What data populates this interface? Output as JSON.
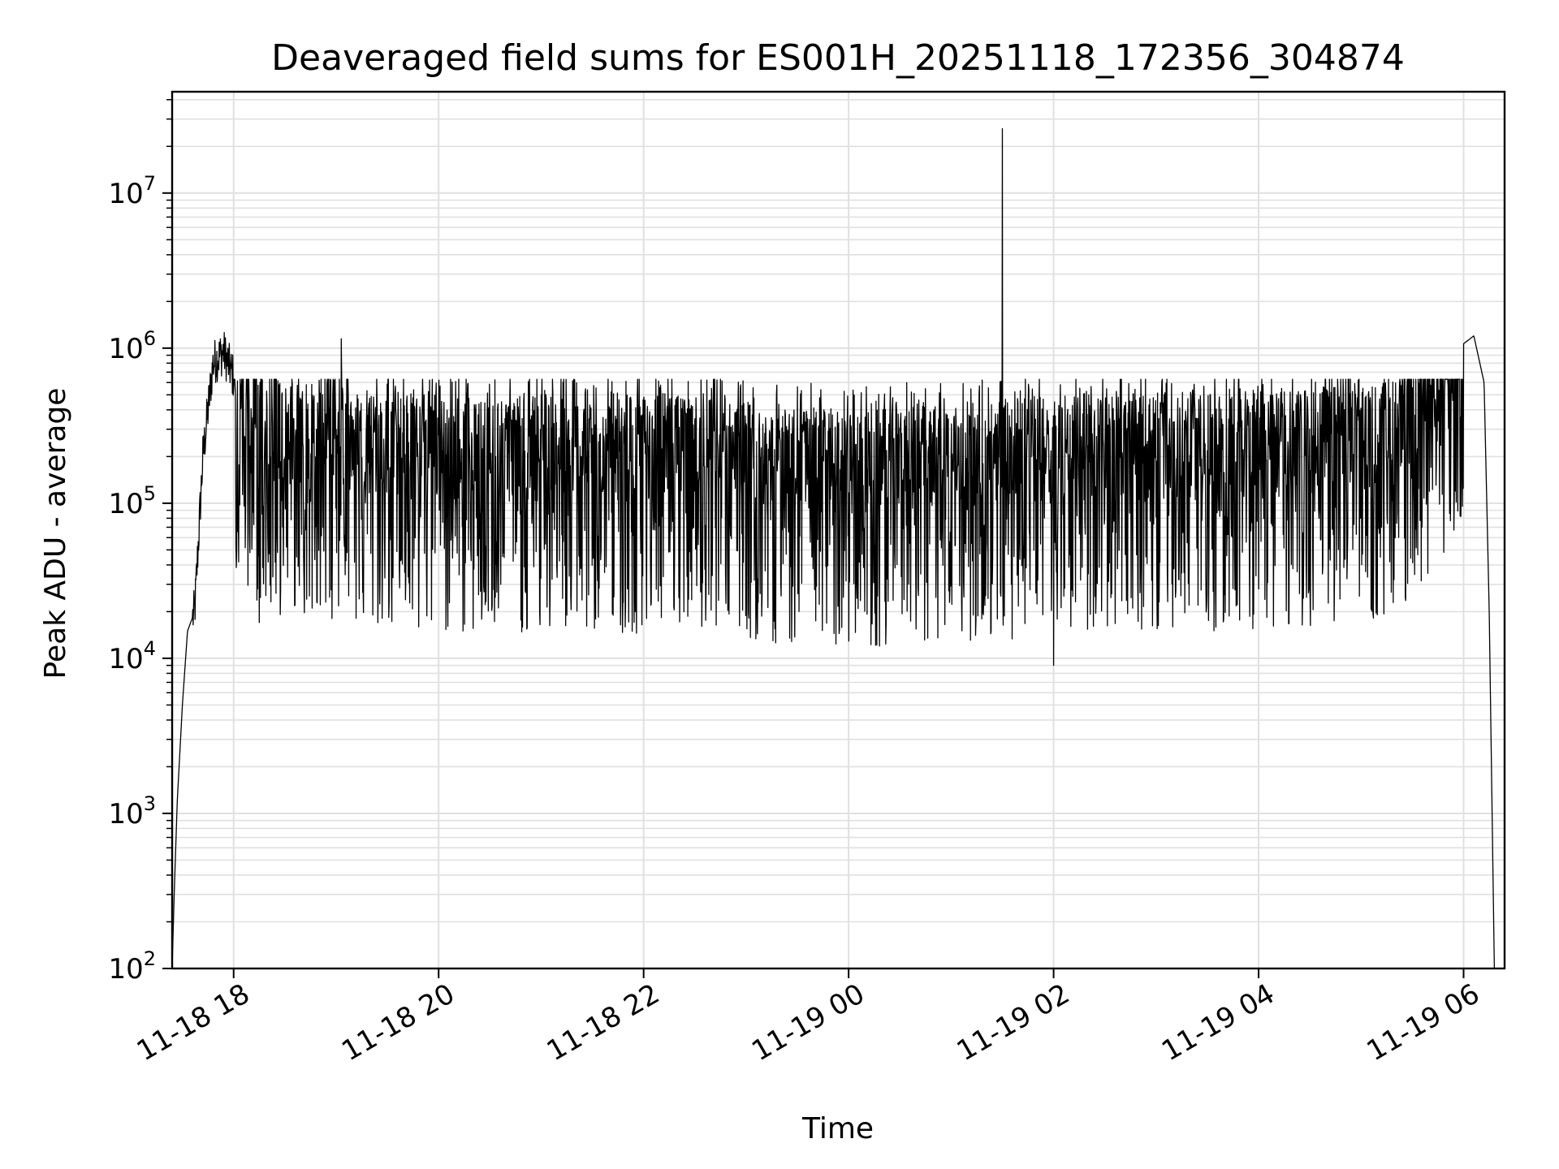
{
  "chart_data": {
    "type": "line",
    "title": "Deaveraged field sums for ES001H_20251118_172356_304874",
    "xlabel": "Time",
    "ylabel": "Peak ADU - average",
    "yscale": "log",
    "ylim": [
      100,
      45000000
    ],
    "xlim_hours": [
      17.4,
      30.4
    ],
    "grid": true,
    "line_color": "#000000",
    "grid_color": "#e0e0e0",
    "x_ticks": [
      {
        "hour": 18,
        "label": "11-18 18"
      },
      {
        "hour": 20,
        "label": "11-18 20"
      },
      {
        "hour": 22,
        "label": "11-18 22"
      },
      {
        "hour": 24,
        "label": "11-19 00"
      },
      {
        "hour": 26,
        "label": "11-19 02"
      },
      {
        "hour": 28,
        "label": "11-19 04"
      },
      {
        "hour": 30,
        "label": "11-19 06"
      }
    ],
    "y_ticks": [
      {
        "value": 100,
        "base": "10",
        "exp": "2"
      },
      {
        "value": 1000,
        "base": "10",
        "exp": "3"
      },
      {
        "value": 10000,
        "base": "10",
        "exp": "4"
      },
      {
        "value": 100000,
        "base": "10",
        "exp": "5"
      },
      {
        "value": 1000000,
        "base": "10",
        "exp": "6"
      },
      {
        "value": 10000000,
        "base": "10",
        "exp": "7"
      }
    ],
    "series": [
      {
        "name": "Peak ADU - average",
        "baseline": [
          {
            "hour": 17.4,
            "value": 100
          },
          {
            "hour": 17.42,
            "value": 300
          },
          {
            "hour": 17.45,
            "value": 1200
          },
          {
            "hour": 17.5,
            "value": 5000
          },
          {
            "hour": 17.55,
            "value": 15000
          },
          {
            "hour": 17.62,
            "value": 20000
          },
          {
            "hour": 17.7,
            "value": 200000
          },
          {
            "hour": 17.8,
            "value": 800000
          },
          {
            "hour": 17.9,
            "value": 950000
          },
          {
            "hour": 18.0,
            "value": 650000
          },
          {
            "hour": 18.2,
            "value": 380000
          },
          {
            "hour": 18.5,
            "value": 280000
          },
          {
            "hour": 20.0,
            "value": 230000
          },
          {
            "hour": 22.0,
            "value": 230000
          },
          {
            "hour": 24.0,
            "value": 180000
          },
          {
            "hour": 26.0,
            "value": 220000
          },
          {
            "hour": 28.0,
            "value": 240000
          },
          {
            "hour": 29.3,
            "value": 280000
          },
          {
            "hour": 29.6,
            "value": 450000
          },
          {
            "hour": 29.9,
            "value": 950000
          },
          {
            "hour": 30.1,
            "value": 1200000
          },
          {
            "hour": 30.2,
            "value": 600000
          },
          {
            "hour": 30.25,
            "value": 20000
          },
          {
            "hour": 30.3,
            "value": 100
          }
        ],
        "noise_min": 12000,
        "noise_max": 600000,
        "spikes": [
          {
            "hour": 18.25,
            "value": 17000
          },
          {
            "hour": 19.05,
            "value": 1150000
          },
          {
            "hour": 25.5,
            "value": 26000000
          },
          {
            "hour": 26.0,
            "value": 9000
          }
        ]
      }
    ]
  }
}
